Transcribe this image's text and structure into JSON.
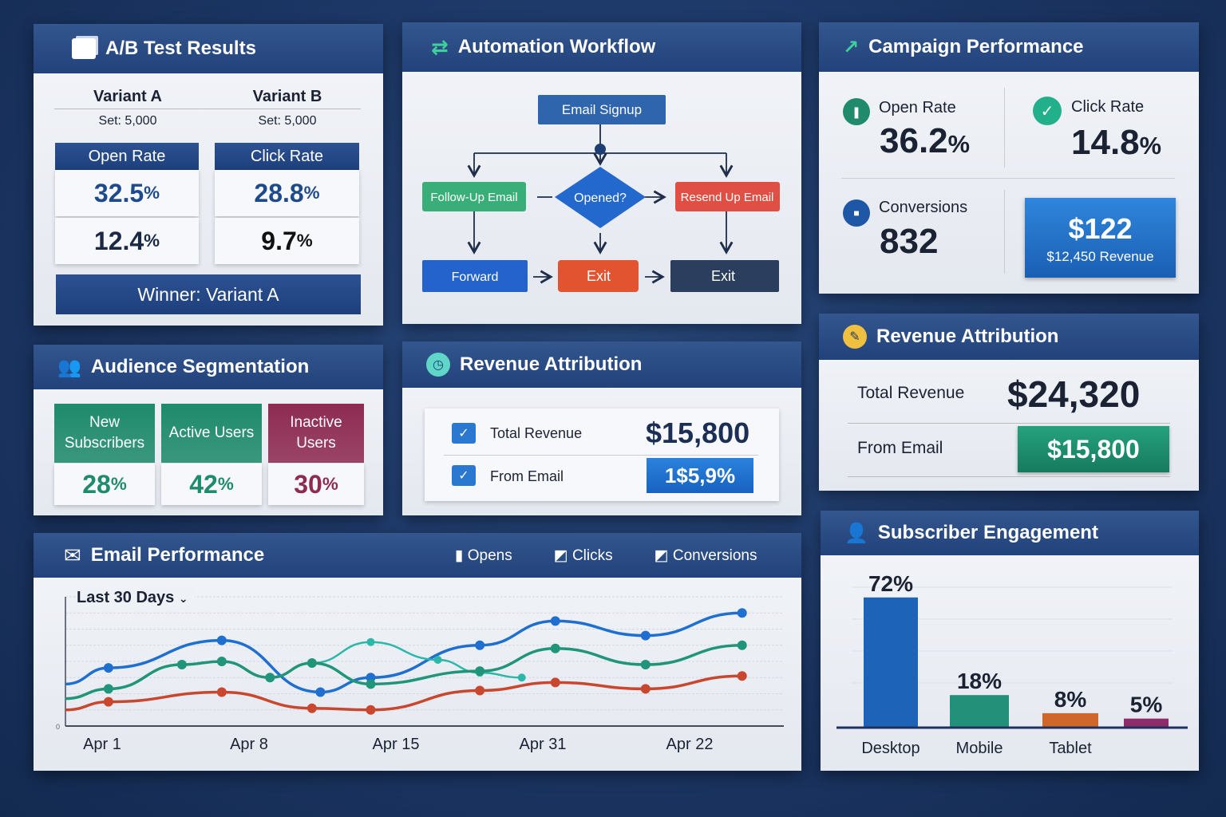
{
  "colors": {
    "header": "#26467f",
    "blue": "#1f6fd1",
    "green": "#21957a",
    "teal": "#2bb8a8",
    "red": "#e0523b",
    "maroon": "#8e2b52",
    "navy": "#2c3e5c"
  },
  "ab_test": {
    "title": "A/B Test Results",
    "icon": "cards-icon",
    "variant_a": "Variant A",
    "variant_b": "Variant B",
    "set_a": "Set: 5,000",
    "set_b": "Set: 5,000",
    "col_a_header": "Open Rate",
    "col_b_header": "Click Rate",
    "a_row1": "32.5",
    "b_row1": "28.8",
    "a_row2": "12.4",
    "b_row2": "9.7",
    "pct": "%",
    "winner": "Winner: Variant A"
  },
  "workflow": {
    "title": "Automation Workflow",
    "icon": "sync-arrows-icon",
    "nodes": {
      "signup": "Email Signup",
      "followup": "Follow-Up Email",
      "decision": "Opened?",
      "resend": "Resend Up Email",
      "forward": "Forward",
      "exit1": "Exit",
      "exit2": "Exit"
    }
  },
  "campaign": {
    "title": "Campaign Performance",
    "icon": "trend-arrow-icon",
    "open_rate_label": "Open Rate",
    "open_rate": "36.2",
    "click_rate_label": "Click Rate",
    "click_rate": "14.8",
    "pct": "%",
    "conversions_label": "Conversions",
    "conversions": "832",
    "value": "$122",
    "revenue": "$12,450 Revenue"
  },
  "audience": {
    "title": "Audience Segmentation",
    "icon": "users-icon",
    "segments": [
      {
        "label": "New Subscribers",
        "value": "28",
        "color": "#1f8a6c"
      },
      {
        "label": "Active Users",
        "value": "42",
        "color": "#1f8a6c"
      },
      {
        "label": "Inactive Users",
        "value": "30",
        "color": "#8e2b52"
      }
    ],
    "pct": "%"
  },
  "revenue_mid": {
    "title": "Revenue Attribution",
    "icon": "clock-icon",
    "total_label": "Total Revenue",
    "total": "$15,800",
    "email_label": "From Email",
    "email": "1$5,9%"
  },
  "revenue_right": {
    "title": "Revenue Attribution",
    "icon": "gauge-icon",
    "total_label": "Total Revenue",
    "total": "$24,320",
    "email_label": "From Email",
    "email": "$15,800"
  },
  "email_perf": {
    "title": "Email Performance",
    "icon": "envelope-icon",
    "legend": [
      "Opens",
      "Clicks",
      "Conversions"
    ],
    "range": "Last 30 Days"
  },
  "engagement": {
    "title": "Subscriber Engagement",
    "icon": "user-device-icon"
  },
  "chart_data": [
    {
      "type": "line",
      "title": "Email Performance",
      "xlabel": "",
      "ylabel": "",
      "ylim": [
        0,
        8
      ],
      "y_ticks": [
        "0"
      ],
      "grid": true,
      "x_ticks": [
        {
          "x": 1,
          "label": "Apr 1"
        },
        {
          "x": 8,
          "label": "Apr 8"
        },
        {
          "x": 15,
          "label": "Apr 15"
        },
        {
          "x": 22,
          "label": "Apr 31"
        },
        {
          "x": 29,
          "label": "Apr 22"
        }
      ],
      "series": [
        {
          "color": "#1f6fd1",
          "points": [
            [
              -0.8,
              2.6
            ],
            [
              1.3,
              3.6
            ],
            [
              6.7,
              5.3
            ],
            [
              11.4,
              2.1
            ],
            [
              13.8,
              3.0
            ],
            [
              19,
              5.0
            ],
            [
              22.6,
              6.5
            ],
            [
              26.9,
              5.6
            ],
            [
              31.5,
              7.0
            ]
          ]
        },
        {
          "color": "#2bb8a8",
          "points": [
            [
              11,
              3.9
            ],
            [
              13.8,
              5.2
            ],
            [
              17,
              4.1
            ],
            [
              19,
              3.3
            ],
            [
              21,
              3.0
            ]
          ]
        },
        {
          "color": "#21957a",
          "points": [
            [
              -0.8,
              1.7
            ],
            [
              1.3,
              2.3
            ],
            [
              4.8,
              3.8
            ],
            [
              6.7,
              4.0
            ],
            [
              9,
              3.0
            ],
            [
              11,
              3.9
            ],
            [
              13.8,
              2.6
            ],
            [
              19,
              3.4
            ],
            [
              22.6,
              4.8
            ],
            [
              26.9,
              3.8
            ],
            [
              31.5,
              5.0
            ]
          ]
        },
        {
          "color": "#c9472e",
          "points": [
            [
              -0.8,
              1.0
            ],
            [
              1.3,
              1.5
            ],
            [
              6.7,
              2.1
            ],
            [
              11,
              1.1
            ],
            [
              13.8,
              1.0
            ],
            [
              19,
              2.2
            ],
            [
              22.6,
              2.7
            ],
            [
              26.9,
              2.3
            ],
            [
              31.5,
              3.1
            ]
          ]
        }
      ]
    },
    {
      "type": "bar",
      "title": "Subscriber Engagement",
      "categories": [
        "Desktop",
        "Mobile",
        "Tablet",
        ""
      ],
      "values": [
        72,
        18,
        8,
        5
      ],
      "labels": [
        "72%",
        "18%",
        "8%",
        "5%"
      ],
      "colors": [
        "#1d63b8",
        "#23917a",
        "#d0672a",
        "#8e2b6a"
      ],
      "ylim": [
        0,
        75
      ]
    }
  ]
}
